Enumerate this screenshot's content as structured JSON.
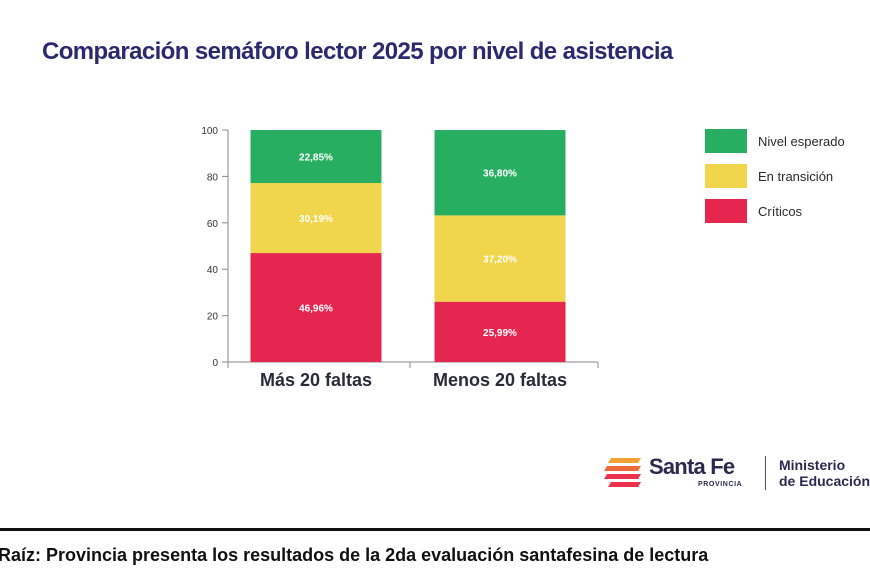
{
  "chart_data": {
    "type": "bar",
    "stacked": true,
    "title": "Comparación semáforo lector 2025 por nivel de asistencia",
    "categories": [
      "Más 20 faltas",
      "Menos 20 faltas"
    ],
    "ylim": [
      0,
      100
    ],
    "yticks": [
      0,
      20,
      40,
      60,
      80,
      100
    ],
    "legend_position": "right",
    "series": [
      {
        "name": "Críticos",
        "color": "#e5264f",
        "values": [
          46.96,
          25.99
        ],
        "labels": [
          "46,96%",
          "25,99%"
        ]
      },
      {
        "name": "En transición",
        "color": "#f1d54c",
        "values": [
          30.19,
          37.2
        ],
        "labels": [
          "30,19%",
          "37,20%"
        ]
      },
      {
        "name": "Nivel esperado",
        "color": "#27ae60",
        "values": [
          22.85,
          36.8
        ],
        "labels": [
          "22,85%",
          "36,80%"
        ]
      }
    ],
    "legend_order": [
      "Nivel esperado",
      "En transición",
      "Críticos"
    ]
  },
  "logo": {
    "name": "Santa Fe",
    "sub": "PROVINCIA",
    "ministry_line1": "Ministerio",
    "ministry_line2": "de Educación",
    "stripe_colors": [
      "#f4a235",
      "#ee6a3a",
      "#e8334a"
    ]
  },
  "caption": "Raíz: Provincia presenta los resultados de la 2da evaluación santafesina de lectura"
}
